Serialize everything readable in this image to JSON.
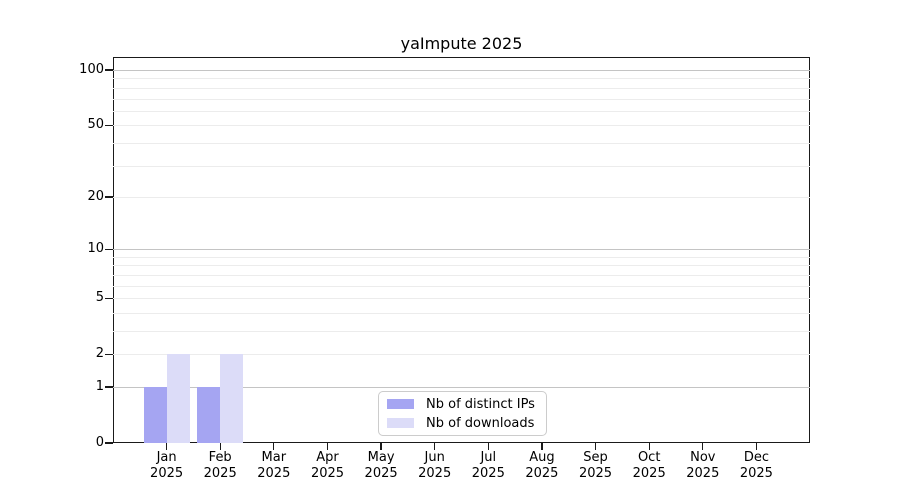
{
  "title": "yaImpute 2025",
  "chart_data": {
    "type": "bar",
    "title": "yaImpute 2025",
    "categories": [
      "Jan 2025",
      "Feb 2025",
      "Mar 2025",
      "Apr 2025",
      "May 2025",
      "Jun 2025",
      "Jul 2025",
      "Aug 2025",
      "Sep 2025",
      "Oct 2025",
      "Nov 2025",
      "Dec 2025"
    ],
    "series": [
      {
        "name": "Nb of distinct IPs",
        "color": "#a5a5f2",
        "values": [
          1,
          1,
          0,
          0,
          0,
          0,
          0,
          0,
          0,
          0,
          0,
          0
        ]
      },
      {
        "name": "Nb of downloads",
        "color": "#dcdcf8",
        "values": [
          2,
          2,
          0,
          0,
          0,
          0,
          0,
          0,
          0,
          0,
          0,
          0
        ]
      }
    ],
    "xlabel": "",
    "ylabel": "",
    "y_scale": "log10(1+y)",
    "y_ticks": [
      0,
      1,
      2,
      5,
      10,
      20,
      50,
      100
    ],
    "major_gridlines": [
      1,
      10,
      100
    ],
    "minor_gridlines": [
      2,
      3,
      4,
      5,
      6,
      7,
      8,
      9,
      20,
      30,
      40,
      50,
      60,
      70,
      80,
      90
    ],
    "ylim": [
      0,
      117
    ],
    "grid": true,
    "legend_position": "lower center"
  },
  "colors": {
    "bar_distinct_ips": "#a5a5f2",
    "bar_downloads": "#dcdcf8",
    "grid_major": "#c4c4c4",
    "grid_minor": "#ececec",
    "spine": "#1a1a1a",
    "legend_border": "#cccccc",
    "text": "#000000"
  }
}
